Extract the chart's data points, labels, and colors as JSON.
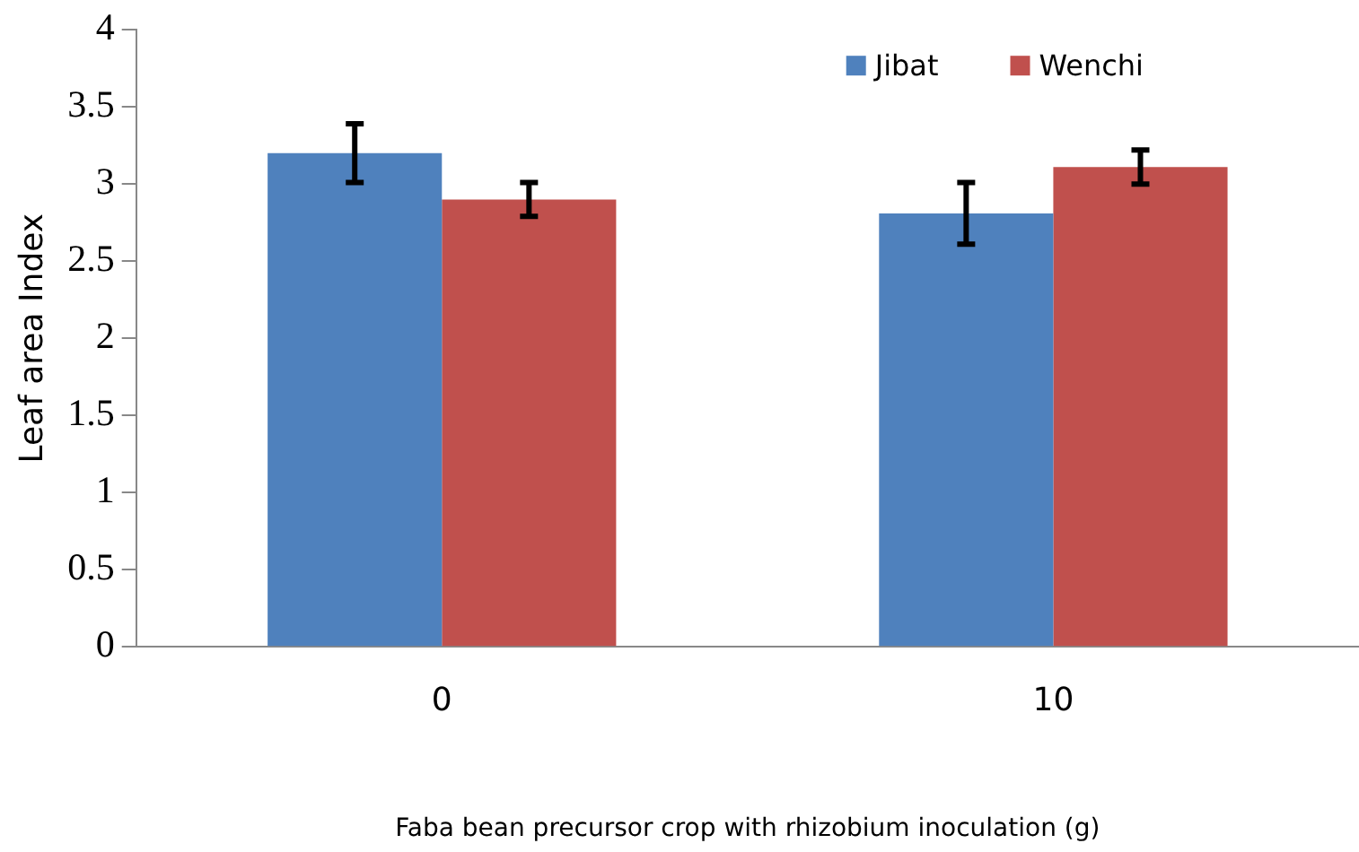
{
  "chart_data": {
    "type": "bar",
    "xlabel": "Faba bean precursor crop with rhizobium inoculation (g)",
    "ylabel": "Leaf area Index",
    "categories": [
      "0",
      "10"
    ],
    "series": [
      {
        "name": "Jibat",
        "color": "#4f81bd",
        "values": [
          3.2,
          2.81
        ],
        "errors": [
          0.19,
          0.2
        ]
      },
      {
        "name": "Wenchi",
        "color": "#c0504d",
        "values": [
          2.9,
          3.11
        ],
        "errors": [
          0.11,
          0.11
        ]
      }
    ],
    "ylim": [
      0,
      4
    ],
    "yticks": [
      0,
      0.5,
      1,
      1.5,
      2,
      2.5,
      3,
      3.5,
      4
    ],
    "grid": false,
    "legend": "top right"
  }
}
